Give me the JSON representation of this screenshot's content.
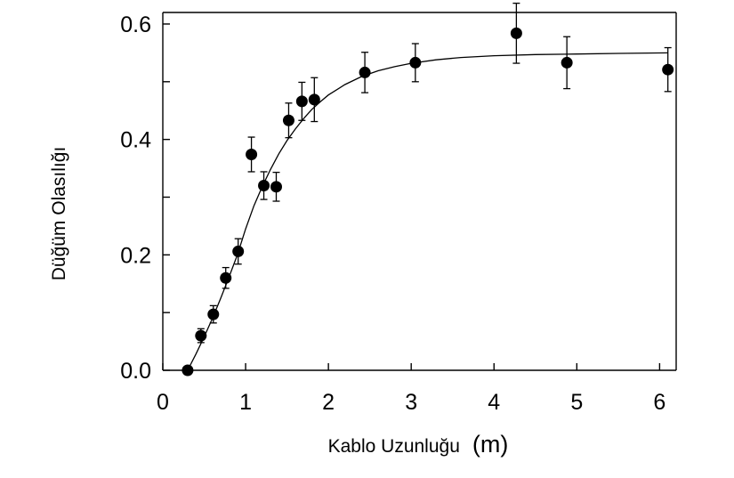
{
  "chart_data": {
    "type": "scatter",
    "title": "",
    "xlabel": "Kablo Uzunluğu",
    "xlabel_unit": "(m)",
    "ylabel": "Düğüm Olasılığı",
    "xlim": [
      0,
      6.2
    ],
    "ylim": [
      0,
      0.62
    ],
    "x_ticks": [
      0,
      1,
      2,
      3,
      4,
      5,
      6
    ],
    "x_tick_labels": [
      "0",
      "1",
      "2",
      "3",
      "4",
      "5",
      "6"
    ],
    "y_ticks": [
      0.0,
      0.1,
      0.2,
      0.3,
      0.4,
      0.5,
      0.6
    ],
    "y_tick_labels": [
      "0.0",
      "",
      "0.2",
      "",
      "0.4",
      "",
      "0.6"
    ],
    "grid": false,
    "legend": "none",
    "series": [
      {
        "marker": "filled-circle",
        "color": "#000000",
        "points": [
          {
            "x": 0.3,
            "y": 0.0,
            "err": 0.0
          },
          {
            "x": 0.46,
            "y": 0.06,
            "err": 0.012
          },
          {
            "x": 0.61,
            "y": 0.097,
            "err": 0.015
          },
          {
            "x": 0.76,
            "y": 0.16,
            "err": 0.018
          },
          {
            "x": 0.91,
            "y": 0.206,
            "err": 0.022
          },
          {
            "x": 1.07,
            "y": 0.374,
            "err": 0.03
          },
          {
            "x": 1.22,
            "y": 0.32,
            "err": 0.024
          },
          {
            "x": 1.37,
            "y": 0.318,
            "err": 0.025
          },
          {
            "x": 1.52,
            "y": 0.433,
            "err": 0.03
          },
          {
            "x": 1.68,
            "y": 0.466,
            "err": 0.033
          },
          {
            "x": 1.83,
            "y": 0.469,
            "err": 0.038
          },
          {
            "x": 2.44,
            "y": 0.516,
            "err": 0.035
          },
          {
            "x": 3.05,
            "y": 0.533,
            "err": 0.033
          },
          {
            "x": 4.27,
            "y": 0.584,
            "err": 0.052
          },
          {
            "x": 4.88,
            "y": 0.533,
            "err": 0.045
          },
          {
            "x": 6.1,
            "y": 0.521,
            "err": 0.038
          }
        ]
      }
    ],
    "fit_curve": {
      "x": [
        0.3,
        0.4,
        0.5,
        0.6,
        0.7,
        0.8,
        0.9,
        1.0,
        1.1,
        1.2,
        1.3,
        1.4,
        1.5,
        1.6,
        1.7,
        1.8,
        1.9,
        2.0,
        2.2,
        2.4,
        2.6,
        2.8,
        3.0,
        3.3,
        3.6,
        4.0,
        4.5,
        5.0,
        5.5,
        6.1
      ],
      "y": [
        0.0,
        0.028,
        0.058,
        0.09,
        0.125,
        0.162,
        0.2,
        0.245,
        0.285,
        0.318,
        0.348,
        0.375,
        0.398,
        0.418,
        0.436,
        0.452,
        0.465,
        0.477,
        0.495,
        0.509,
        0.519,
        0.526,
        0.532,
        0.538,
        0.542,
        0.545,
        0.547,
        0.548,
        0.549,
        0.55
      ]
    }
  }
}
